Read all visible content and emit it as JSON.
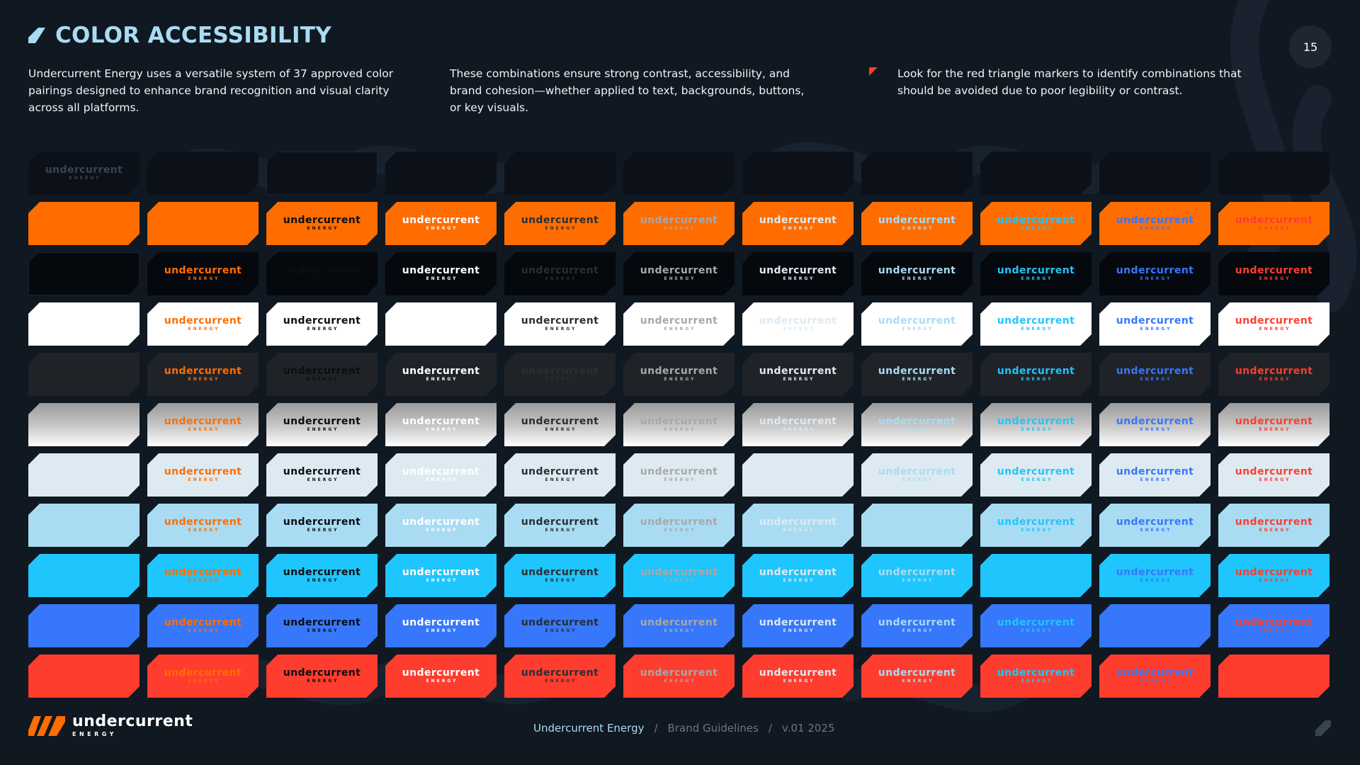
{
  "header": {
    "title": "COLOR ACCESSIBILITY",
    "page_number": "15"
  },
  "intro": {
    "p1": "Undercurrent Energy uses a versatile system of 37 approved color pairings designed to enhance brand recognition and visual clarity across all platforms.",
    "p2": "These combinations ensure strong contrast, accessibility, and brand cohesion—whether applied to text, backgrounds, buttons, or key visuals.",
    "p3": "Look for the red triangle markers to identify combinations that should be avoided due to poor legibility or contrast."
  },
  "logo": {
    "wordmark": "undercurrent",
    "subline": "ENERGY"
  },
  "palette": [
    {
      "name": "dark-navy",
      "bg": "#0c1119",
      "fg": "#0a0f17"
    },
    {
      "name": "orange",
      "bg": "#ff6d00",
      "fg": "#ff6d00"
    },
    {
      "name": "black",
      "bg": "#05080d",
      "fg": "#0a0d12"
    },
    {
      "name": "white",
      "bg": "#ffffff",
      "fg": "#ffffff"
    },
    {
      "name": "charcoal",
      "bg": "#1f2328",
      "fg": "#2a2e33"
    },
    {
      "name": "silver-gradient",
      "bg": "linear-gradient(180deg,#9a9a9a 0%,#c9c9c9 55%,#ffffff 100%)",
      "fg": "#a8a8a8"
    },
    {
      "name": "ice",
      "bg": "#deeaf1",
      "fg": "#deeaf1"
    },
    {
      "name": "sky",
      "bg": "#a9dcf3",
      "fg": "#a9dcf3"
    },
    {
      "name": "cyan",
      "bg": "#1fc5fd",
      "fg": "#1fc5fd"
    },
    {
      "name": "blue",
      "bg": "#3677fb",
      "fg": "#3677fb"
    },
    {
      "name": "red",
      "bg": "#ff3d2e",
      "fg": "#ff3d2e"
    }
  ],
  "marked_cells": [
    [
      1,
      1
    ],
    [
      1,
      3
    ],
    [
      1,
      5
    ],
    [
      1,
      6
    ],
    [
      1,
      8
    ],
    [
      1,
      9
    ],
    [
      1,
      10
    ],
    [
      1,
      11
    ],
    [
      2,
      2
    ],
    [
      2,
      4
    ],
    [
      3,
      1
    ],
    [
      3,
      3
    ],
    [
      3,
      6
    ],
    [
      3,
      7
    ],
    [
      3,
      8
    ],
    [
      4,
      2
    ],
    [
      4,
      4
    ],
    [
      4,
      5
    ],
    [
      5,
      1
    ],
    [
      5,
      3
    ],
    [
      5,
      5
    ],
    [
      5,
      6
    ],
    [
      5,
      7
    ],
    [
      5,
      8
    ],
    [
      5,
      9
    ],
    [
      5,
      10
    ],
    [
      6,
      1
    ],
    [
      6,
      3
    ],
    [
      6,
      5
    ],
    [
      6,
      6
    ],
    [
      6,
      7
    ],
    [
      6,
      8
    ],
    [
      6,
      9
    ],
    [
      6,
      10
    ],
    [
      7,
      1
    ],
    [
      7,
      3
    ],
    [
      7,
      5
    ],
    [
      7,
      6
    ],
    [
      7,
      7
    ],
    [
      7,
      8
    ],
    [
      7,
      9
    ],
    [
      7,
      10
    ],
    [
      8,
      1
    ],
    [
      8,
      5
    ],
    [
      8,
      6
    ],
    [
      8,
      7
    ],
    [
      8,
      8
    ],
    [
      8,
      9
    ],
    [
      8,
      10
    ],
    [
      9,
      1
    ],
    [
      9,
      5
    ],
    [
      9,
      6
    ],
    [
      9,
      8
    ],
    [
      9,
      9
    ],
    [
      9,
      10
    ],
    [
      10,
      1
    ],
    [
      10,
      5
    ],
    [
      10,
      6
    ],
    [
      10,
      8
    ],
    [
      10,
      9
    ],
    [
      10,
      10
    ]
  ],
  "footer": {
    "crumb_1": "Undercurrent Energy",
    "crumb_2": "Brand Guidelines",
    "crumb_3": "v.01 2025",
    "separator": "/"
  }
}
